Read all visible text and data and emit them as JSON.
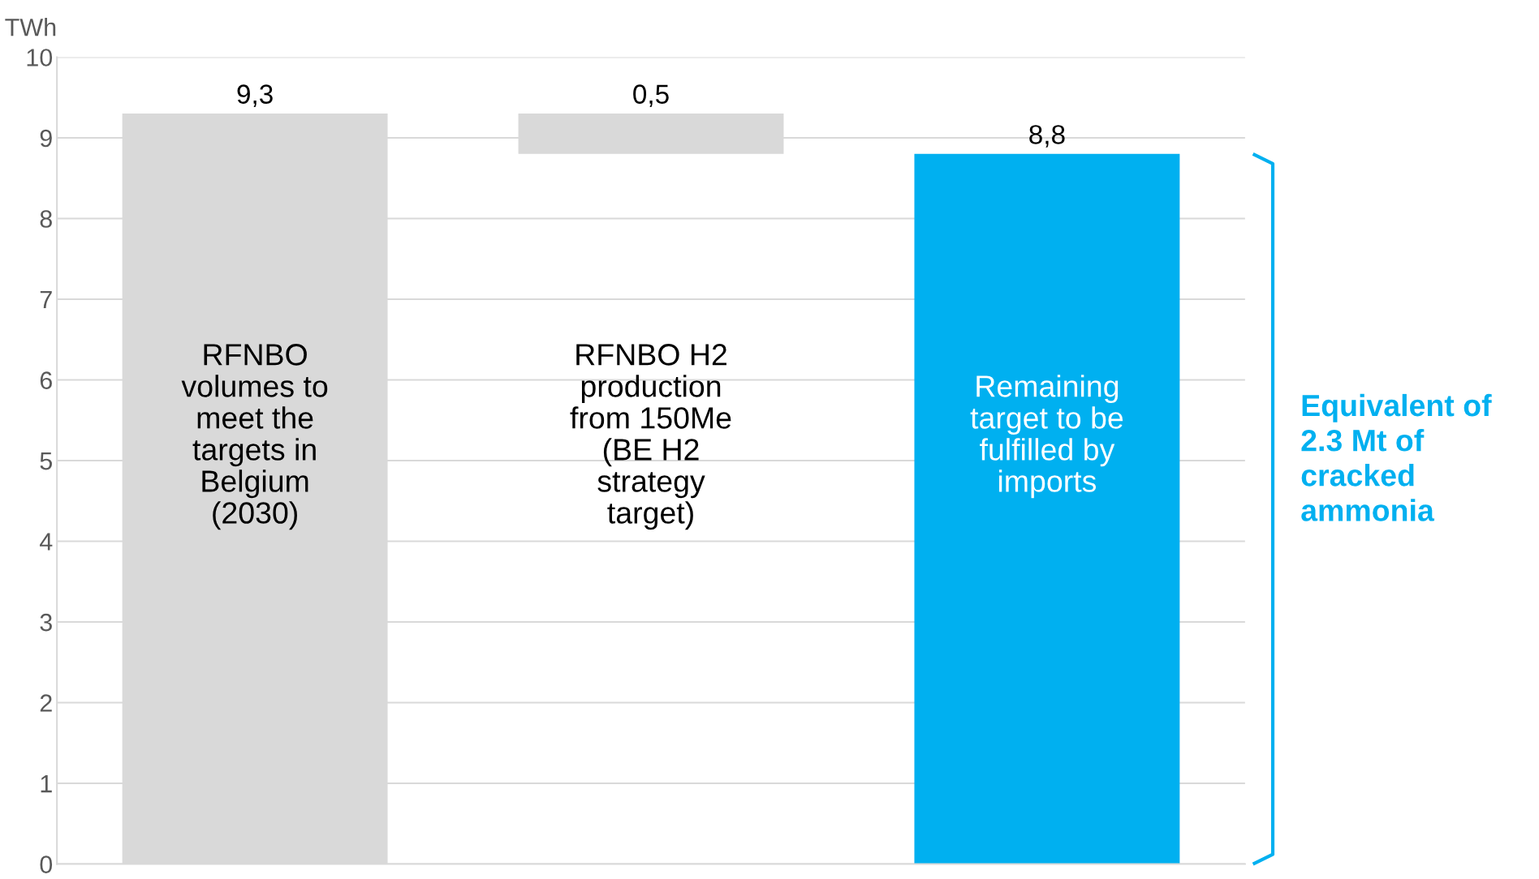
{
  "chart_data": {
    "type": "bar",
    "ylabel": "TWh",
    "categories": [
      "RFNBO\nvolumes to\nmeet the\ntargets in\nBelgium\n(2030)",
      "RFNBO H2\nproduction\nfrom 150Me\n(BE H2\nstrategy\ntarget)",
      "Remaining\ntarget to be\nfulfilled by\nimports"
    ],
    "values": [
      9.3,
      0.5,
      8.8
    ],
    "base": [
      0,
      8.8,
      0
    ],
    "colors": [
      "#d9d9d9",
      "#d9d9d9",
      "#00b0f0"
    ],
    "value_labels": [
      "9,3",
      "0,5",
      "8,8"
    ],
    "ylim": [
      0,
      10
    ],
    "yticks": [
      0,
      1,
      2,
      3,
      4,
      5,
      6,
      7,
      8,
      9,
      10
    ],
    "grid": "y",
    "tick_labels": "y",
    "annotations": [
      "Equivalent of\n2.3 Mt of\ncracked\nammonia"
    ]
  }
}
